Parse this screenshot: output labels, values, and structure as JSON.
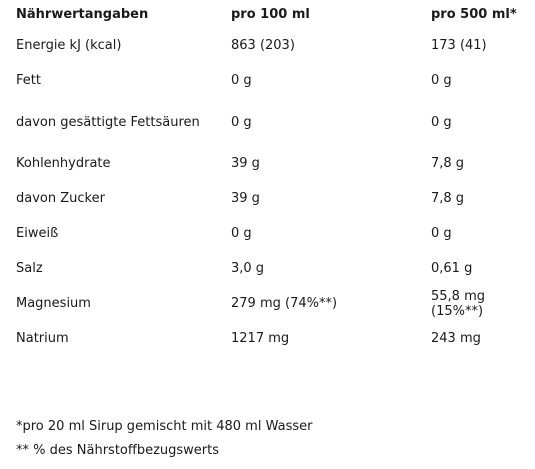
{
  "table": {
    "headers": [
      "Nährwertangaben",
      "pro 100 ml",
      "pro 500 ml*"
    ],
    "rows": [
      {
        "label": "Energie kJ (kcal)",
        "per100": "863 (203)",
        "per500": "173 (41)"
      },
      {
        "label": "Fett",
        "per100": "0 g",
        "per500": "0 g"
      },
      {
        "label": "davon gesättigte Fettsäuren",
        "per100": "0 g",
        "per500": "0 g"
      },
      {
        "label": "Kohlenhydrate",
        "per100": "39 g",
        "per500": "7,8 g"
      },
      {
        "label": "davon Zucker",
        "per100": "39 g",
        "per500": "7,8 g"
      },
      {
        "label": "Eiweiß",
        "per100": "0 g",
        "per500": "0 g"
      },
      {
        "label": "Salz",
        "per100": "3,0 g",
        "per500": "0,61 g"
      },
      {
        "label": "Magnesium",
        "per100": "279 mg (74%**)",
        "per500": "55,8 mg (15%**)"
      },
      {
        "label": "Natrium",
        "per100": "1217 mg",
        "per500": "243 mg"
      }
    ]
  },
  "footnotes": [
    "*pro 20 ml Sirup gemischt mit 480 ml Wasser",
    "** % des Nährstoffbezugswerts"
  ]
}
